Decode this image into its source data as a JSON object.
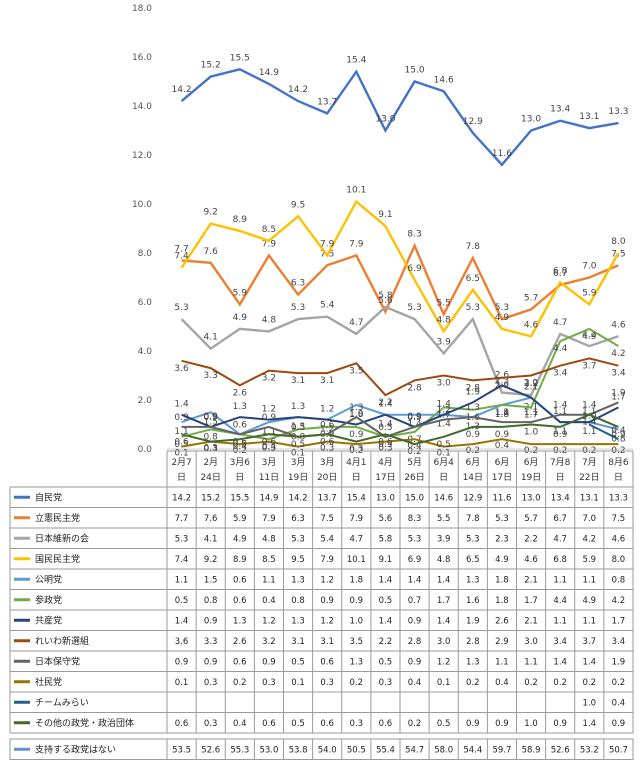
{
  "chart_data": {
    "type": "line",
    "ylim": [
      0,
      18
    ],
    "yticks": [
      "0.0",
      "2.0",
      "4.0",
      "6.0",
      "8.0",
      "10.0",
      "12.0",
      "14.0",
      "16.0",
      "18.0"
    ],
    "grid": false,
    "categories": [
      [
        "2月7",
        "日"
      ],
      [
        "2月",
        "24日"
      ],
      [
        "3月6",
        "日"
      ],
      [
        "3月",
        "11日"
      ],
      [
        "3月",
        "19日"
      ],
      [
        "3月",
        "20日"
      ],
      [
        "4月1",
        "日"
      ],
      [
        "4月",
        "17日"
      ],
      [
        "5月",
        "26日"
      ],
      [
        "6月4",
        "日"
      ],
      [
        "6月",
        "14日"
      ],
      [
        "6月",
        "17日"
      ],
      [
        "6月",
        "19日"
      ],
      [
        "7月8",
        "日"
      ],
      [
        "7月",
        "22日"
      ],
      [
        "8月6",
        "日"
      ]
    ],
    "series": [
      {
        "name": "自民党",
        "color": "#4472c4",
        "values": [
          14.2,
          15.2,
          15.5,
          14.9,
          14.2,
          13.7,
          15.4,
          13.0,
          15.0,
          14.6,
          12.9,
          11.6,
          13.0,
          13.4,
          13.1,
          13.3
        ],
        "table": [
          "14.2",
          "15.2",
          "15.5",
          "14.9",
          "14.2",
          "13.7",
          "15.4",
          "13.0",
          "15.0",
          "14.6",
          "12.9",
          "11.6",
          "13.0",
          "13.4",
          "13.1",
          "13.3"
        ]
      },
      {
        "name": "立憲民主党",
        "color": "#ed7d31",
        "values": [
          7.7,
          7.6,
          5.9,
          7.9,
          6.3,
          7.5,
          7.9,
          5.6,
          8.3,
          5.5,
          7.8,
          5.3,
          5.7,
          6.7,
          7.0,
          7.5
        ],
        "table": [
          "7.7",
          "7.6",
          "5.9",
          "7.9",
          "6.3",
          "7.5",
          "7.9",
          "5.6",
          "8.3",
          "5.5",
          "7.8",
          "5.3",
          "5.7",
          "6.7",
          "7.0",
          "7.5"
        ]
      },
      {
        "name": "日本維新の会",
        "color": "#a5a5a5",
        "values": [
          5.3,
          4.1,
          4.9,
          4.8,
          5.3,
          5.4,
          4.7,
          5.8,
          5.3,
          3.9,
          5.3,
          2.3,
          2.2,
          4.7,
          4.2,
          4.6
        ],
        "table": [
          "5.3",
          "4.1",
          "4.9",
          "4.8",
          "5.3",
          "5.4",
          "4.7",
          "5.8",
          "5.3",
          "3.9",
          "5.3",
          "2.3",
          "2.2",
          "4.7",
          "4.2",
          "4.6"
        ]
      },
      {
        "name": "国民民主党",
        "color": "#ffc000",
        "values": [
          7.4,
          9.2,
          8.9,
          8.5,
          9.5,
          7.9,
          10.1,
          9.1,
          6.9,
          4.8,
          6.5,
          4.9,
          4.6,
          6.8,
          5.9,
          8.0
        ],
        "table": [
          "7.4",
          "9.2",
          "8.9",
          "8.5",
          "9.5",
          "7.9",
          "10.1",
          "9.1",
          "6.9",
          "4.8",
          "6.5",
          "4.9",
          "4.6",
          "6.8",
          "5.9",
          "8.0"
        ]
      },
      {
        "name": "公明党",
        "color": "#5b9bd5",
        "values": [
          1.1,
          1.5,
          0.6,
          1.1,
          1.3,
          1.2,
          1.8,
          1.4,
          1.4,
          1.4,
          1.3,
          1.8,
          2.1,
          1.1,
          1.1,
          0.8
        ],
        "table": [
          "1.1",
          "1.5",
          "0.6",
          "1.1",
          "1.3",
          "1.2",
          "1.8",
          "1.4",
          "1.4",
          "1.4",
          "1.3",
          "1.8",
          "2.1",
          "1.1",
          "1.1",
          "0.8"
        ]
      },
      {
        "name": "参政党",
        "color": "#70ad47",
        "values": [
          0.5,
          0.8,
          0.6,
          0.4,
          0.8,
          0.9,
          0.9,
          0.5,
          0.7,
          1.7,
          1.6,
          1.8,
          1.7,
          4.4,
          4.9,
          4.2
        ],
        "table": [
          "0.5",
          "0.8",
          "0.6",
          "0.4",
          "0.8",
          "0.9",
          "0.9",
          "0.5",
          "0.7",
          "1.7",
          "1.6",
          "1.8",
          "1.7",
          "4.4",
          "4.9",
          "4.2"
        ]
      },
      {
        "name": "共産党",
        "color": "#264478",
        "values": [
          1.4,
          0.9,
          1.3,
          1.2,
          1.3,
          1.2,
          1.0,
          1.4,
          0.9,
          1.4,
          1.9,
          2.6,
          2.1,
          1.1,
          1.1,
          1.7
        ],
        "table": [
          "1.4",
          "0.9",
          "1.3",
          "1.2",
          "1.3",
          "1.2",
          "1.0",
          "1.4",
          "0.9",
          "1.4",
          "1.9",
          "2.6",
          "2.1",
          "1.1",
          "1.1",
          "1.7"
        ]
      },
      {
        "name": "れいわ新選組",
        "color": "#9e480e",
        "values": [
          3.6,
          3.3,
          2.6,
          3.2,
          3.1,
          3.1,
          3.5,
          2.2,
          2.8,
          3.0,
          2.8,
          2.9,
          3.0,
          3.4,
          3.7,
          3.4
        ],
        "table": [
          "3.6",
          "3.3",
          "2.6",
          "3.2",
          "3.1",
          "3.1",
          "3.5",
          "2.2",
          "2.8",
          "3.0",
          "2.8",
          "2.9",
          "3.0",
          "3.4",
          "3.7",
          "3.4"
        ]
      },
      {
        "name": "日本保守党",
        "color": "#636363",
        "values": [
          0.9,
          0.9,
          0.6,
          0.9,
          0.5,
          0.6,
          1.3,
          0.5,
          0.9,
          1.2,
          1.3,
          1.1,
          1.1,
          1.4,
          1.4,
          1.9
        ],
        "table": [
          "0.9",
          "0.9",
          "0.6",
          "0.9",
          "0.5",
          "0.6",
          "1.3",
          "0.5",
          "0.9",
          "1.2",
          "1.3",
          "1.1",
          "1.1",
          "1.4",
          "1.4",
          "1.9"
        ]
      },
      {
        "name": "社民党",
        "color": "#997300",
        "values": [
          0.1,
          0.3,
          0.2,
          0.3,
          0.1,
          0.3,
          0.2,
          0.3,
          0.4,
          0.1,
          0.2,
          0.4,
          0.2,
          0.2,
          0.2,
          0.2
        ],
        "table": [
          "0.1",
          "0.3",
          "0.2",
          "0.3",
          "0.1",
          "0.3",
          "0.2",
          "0.3",
          "0.4",
          "0.1",
          "0.2",
          "0.4",
          "0.2",
          "0.2",
          "0.2",
          "0.2"
        ]
      },
      {
        "name": "チームみらい",
        "color": "#255e91",
        "values": [
          null,
          null,
          null,
          null,
          null,
          null,
          null,
          null,
          null,
          null,
          null,
          null,
          null,
          null,
          1.0,
          0.4
        ],
        "table": [
          "",
          "",
          "",
          "",
          "",
          "",
          "",
          "",
          "",
          "",
          "",
          "",
          "",
          "",
          "1.0",
          "0.4"
        ]
      },
      {
        "name": "その他の政党・政治団体",
        "color": "#43682b",
        "values": [
          0.6,
          0.3,
          0.4,
          0.6,
          0.5,
          0.6,
          0.3,
          0.6,
          0.2,
          0.5,
          0.9,
          0.9,
          1.0,
          0.9,
          1.4,
          0.9
        ],
        "table": [
          "0.6",
          "0.3",
          "0.4",
          "0.6",
          "0.5",
          "0.6",
          "0.3",
          "0.6",
          "0.2",
          "0.5",
          "0.9",
          "0.9",
          "1.0",
          "0.9",
          "1.4",
          "0.9"
        ]
      }
    ],
    "extra_row": {
      "name": "支持する政党はない",
      "color": "#698ed0",
      "table": [
        "53.5",
        "52.6",
        "55.3",
        "53.0",
        "53.8",
        "54.0",
        "50.5",
        "55.4",
        "54.7",
        "58.0",
        "54.4",
        "59.7",
        "58.9",
        "52.6",
        "53.2",
        "50.7"
      ]
    }
  }
}
